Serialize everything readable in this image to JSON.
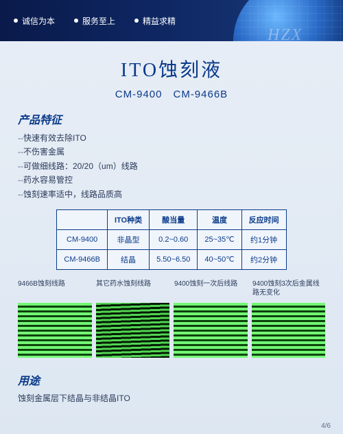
{
  "header": {
    "items": [
      "诚信为本",
      "服务至上",
      "精益求精"
    ],
    "globe_text": "HZX"
  },
  "title": "ITO蚀刻液",
  "subtitle": "CM-9400　CM-9466B",
  "features": {
    "heading": "产品特征",
    "lines": [
      "快速有效去除ITO",
      "不伤害金属",
      "可做细线路：20/20（um）线路",
      "药水容易管控",
      "蚀刻速率适中，线路品质高"
    ],
    "prefix": "--"
  },
  "table": {
    "headers": [
      "",
      "ITO种类",
      "酸当量",
      "温度",
      "反应时间"
    ],
    "rows": [
      [
        "CM-9400",
        "非晶型",
        "0.2~0.60",
        "25~35℃",
        "约1分钟"
      ],
      [
        "CM-9466B",
        "结晶",
        "5.50~6.50",
        "40~50℃",
        "约2分钟"
      ]
    ]
  },
  "captions": {
    "c1": "9466B蚀刻线路",
    "c2": "其它药水蚀刻线路",
    "c3": "9400蚀刻一次后线路",
    "c4": "9400蚀刻3次后金属线路无变化"
  },
  "images": {
    "panels": [
      {
        "style": "bright"
      },
      {
        "style": "wavy"
      },
      {
        "style": "bright"
      },
      {
        "style": "bright"
      }
    ],
    "colors": {
      "stripe_light": "#5ae65a",
      "stripe_dark": "#001e00",
      "bg_dark": "#0a2a0a"
    }
  },
  "usage": {
    "heading": "用途",
    "text": "蚀刻金属层下结晶与非结晶ITO"
  },
  "page_num": "4/6",
  "colors": {
    "primary": "#0a3a8a",
    "body_text": "#2a3a5a",
    "bg_top": "#e8eef6",
    "bg_bottom": "#dde7f2",
    "header_grad_from": "#0a1a4a",
    "header_grad_to": "#1a3a7a"
  }
}
